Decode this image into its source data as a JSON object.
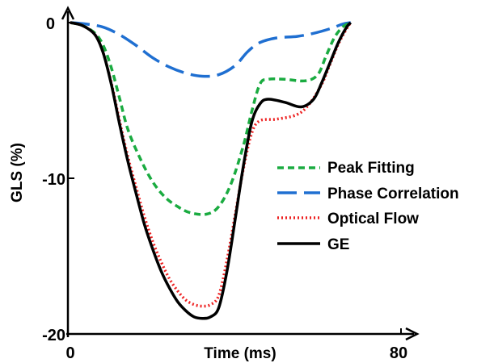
{
  "chart_data": {
    "type": "line",
    "xlabel": "Time (ms)",
    "ylabel": "GLS (%)",
    "xlim": [
      0,
      80
    ],
    "ylim": [
      -20,
      0
    ],
    "x_ticks": [
      "0",
      "80"
    ],
    "y_ticks": [
      "0",
      "-10",
      "-20"
    ],
    "grid": false,
    "legend_position": "right",
    "series": [
      {
        "name": "Peak Fitting",
        "color": "#1aab40",
        "dash": "short-dash",
        "points": [
          [
            0,
            0
          ],
          [
            3,
            -0.2
          ],
          [
            6,
            -0.7
          ],
          [
            8,
            -1.5
          ],
          [
            10,
            -3.0
          ],
          [
            12,
            -5.0
          ],
          [
            14,
            -7.0
          ],
          [
            17,
            -8.9
          ],
          [
            20,
            -10.4
          ],
          [
            23,
            -11.4
          ],
          [
            26,
            -12.0
          ],
          [
            29,
            -12.4
          ],
          [
            33,
            -12.5
          ],
          [
            36,
            -12.0
          ],
          [
            39,
            -10.5
          ],
          [
            42,
            -8.0
          ],
          [
            44,
            -5.8
          ],
          [
            46,
            -4.0
          ],
          [
            48,
            -3.7
          ],
          [
            52,
            -3.7
          ],
          [
            57,
            -3.8
          ],
          [
            60,
            -3.4
          ],
          [
            62,
            -2.2
          ],
          [
            64,
            -1.0
          ],
          [
            66,
            -0.3
          ],
          [
            68,
            0
          ]
        ]
      },
      {
        "name": "Phase Correlation",
        "color": "#1f6fd1",
        "dash": "long-dash",
        "points": [
          [
            0,
            0
          ],
          [
            4,
            -0.1
          ],
          [
            8,
            -0.3
          ],
          [
            12,
            -0.8
          ],
          [
            16,
            -1.5
          ],
          [
            20,
            -2.3
          ],
          [
            24,
            -2.9
          ],
          [
            28,
            -3.3
          ],
          [
            32,
            -3.5
          ],
          [
            36,
            -3.4
          ],
          [
            40,
            -2.8
          ],
          [
            43,
            -1.9
          ],
          [
            46,
            -1.3
          ],
          [
            50,
            -1.0
          ],
          [
            55,
            -0.9
          ],
          [
            59,
            -0.7
          ],
          [
            63,
            -0.4
          ],
          [
            66,
            -0.1
          ],
          [
            68,
            0
          ]
        ]
      },
      {
        "name": "Optical Flow",
        "color": "#ee2222",
        "dash": "dotted",
        "points": [
          [
            0,
            0
          ],
          [
            3,
            -0.2
          ],
          [
            6,
            -0.8
          ],
          [
            8,
            -2.0
          ],
          [
            10,
            -4.0
          ],
          [
            12,
            -6.5
          ],
          [
            14,
            -8.8
          ],
          [
            16,
            -10.8
          ],
          [
            18,
            -12.7
          ],
          [
            20,
            -14.3
          ],
          [
            22,
            -15.6
          ],
          [
            24,
            -16.7
          ],
          [
            26,
            -17.5
          ],
          [
            28,
            -18.1
          ],
          [
            30,
            -18.4
          ],
          [
            32,
            -18.5
          ],
          [
            34,
            -18.4
          ],
          [
            36,
            -17.8
          ],
          [
            38,
            -15.5
          ],
          [
            40,
            -12.5
          ],
          [
            42,
            -9.5
          ],
          [
            44,
            -7.2
          ],
          [
            46,
            -6.4
          ],
          [
            50,
            -6.3
          ],
          [
            55,
            -6.0
          ],
          [
            58,
            -5.3
          ],
          [
            61,
            -4.0
          ],
          [
            63,
            -2.7
          ],
          [
            65,
            -1.4
          ],
          [
            67,
            -0.4
          ],
          [
            68,
            0
          ]
        ]
      },
      {
        "name": "GE",
        "color": "#000000",
        "dash": "solid",
        "points": [
          [
            0,
            0
          ],
          [
            3,
            -0.2
          ],
          [
            6,
            -0.8
          ],
          [
            8,
            -2.0
          ],
          [
            10,
            -4.1
          ],
          [
            12,
            -6.7
          ],
          [
            14,
            -9.1
          ],
          [
            16,
            -11.2
          ],
          [
            18,
            -13.2
          ],
          [
            20,
            -14.8
          ],
          [
            22,
            -16.2
          ],
          [
            24,
            -17.3
          ],
          [
            26,
            -18.2
          ],
          [
            28,
            -18.8
          ],
          [
            30,
            -19.2
          ],
          [
            32,
            -19.3
          ],
          [
            34,
            -19.2
          ],
          [
            36,
            -18.6
          ],
          [
            38,
            -16.2
          ],
          [
            40,
            -12.8
          ],
          [
            42,
            -9.3
          ],
          [
            44,
            -6.5
          ],
          [
            46,
            -5.3
          ],
          [
            48,
            -5.0
          ],
          [
            52,
            -5.2
          ],
          [
            56,
            -5.5
          ],
          [
            59,
            -5.0
          ],
          [
            61,
            -3.9
          ],
          [
            63,
            -2.6
          ],
          [
            65,
            -1.3
          ],
          [
            67,
            -0.3
          ],
          [
            68,
            0
          ]
        ]
      }
    ]
  }
}
